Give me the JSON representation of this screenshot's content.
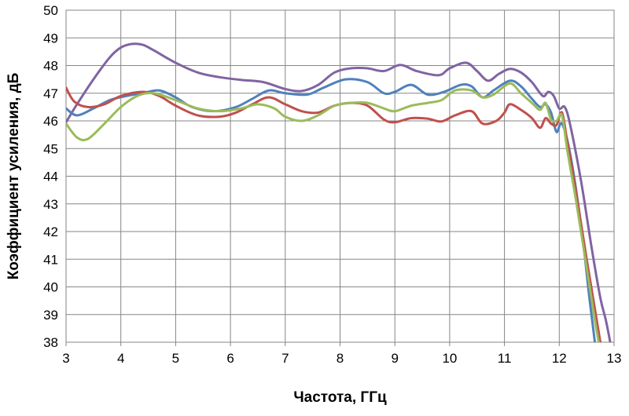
{
  "chart_data": {
    "type": "line",
    "xlabel": "Частота, ГГц",
    "ylabel": "Коэффициент усиления, дБ",
    "xlim": [
      3,
      13
    ],
    "ylim": [
      38,
      50
    ],
    "xticks": [
      "3",
      "4",
      "5",
      "6",
      "7",
      "8",
      "9",
      "10",
      "11",
      "12",
      "13"
    ],
    "yticks": [
      "38",
      "39",
      "40",
      "41",
      "42",
      "43",
      "44",
      "45",
      "46",
      "47",
      "48",
      "49",
      "50"
    ],
    "grid": true,
    "legend": "none",
    "series": [
      {
        "color": "#8064a2",
        "points": [
          [
            3.0,
            45.95
          ],
          [
            3.2,
            46.6
          ],
          [
            3.5,
            47.5
          ],
          [
            3.8,
            48.3
          ],
          [
            4.0,
            48.65
          ],
          [
            4.2,
            48.78
          ],
          [
            4.4,
            48.75
          ],
          [
            4.6,
            48.55
          ],
          [
            5.0,
            48.1
          ],
          [
            5.4,
            47.75
          ],
          [
            5.8,
            47.58
          ],
          [
            6.2,
            47.48
          ],
          [
            6.6,
            47.4
          ],
          [
            7.0,
            47.15
          ],
          [
            7.3,
            47.08
          ],
          [
            7.6,
            47.3
          ],
          [
            7.9,
            47.75
          ],
          [
            8.2,
            47.9
          ],
          [
            8.5,
            47.9
          ],
          [
            8.8,
            47.8
          ],
          [
            9.1,
            48.02
          ],
          [
            9.4,
            47.8
          ],
          [
            9.8,
            47.65
          ],
          [
            10.0,
            47.9
          ],
          [
            10.3,
            48.1
          ],
          [
            10.5,
            47.8
          ],
          [
            10.7,
            47.45
          ],
          [
            10.9,
            47.7
          ],
          [
            11.1,
            47.88
          ],
          [
            11.3,
            47.75
          ],
          [
            11.5,
            47.4
          ],
          [
            11.7,
            46.9
          ],
          [
            11.8,
            47.05
          ],
          [
            11.9,
            46.9
          ],
          [
            12.0,
            46.45
          ],
          [
            12.1,
            46.5
          ],
          [
            12.2,
            45.85
          ],
          [
            12.4,
            43.8
          ],
          [
            12.6,
            41.3
          ],
          [
            12.75,
            39.6
          ],
          [
            12.85,
            38.8
          ],
          [
            12.93,
            38.0
          ]
        ]
      },
      {
        "color": "#4f81bd",
        "points": [
          [
            3.0,
            46.45
          ],
          [
            3.2,
            46.2
          ],
          [
            3.5,
            46.45
          ],
          [
            3.8,
            46.75
          ],
          [
            4.1,
            46.9
          ],
          [
            4.4,
            47.0
          ],
          [
            4.7,
            47.1
          ],
          [
            5.0,
            46.85
          ],
          [
            5.3,
            46.5
          ],
          [
            5.7,
            46.35
          ],
          [
            6.1,
            46.5
          ],
          [
            6.4,
            46.8
          ],
          [
            6.7,
            47.1
          ],
          [
            7.0,
            47.0
          ],
          [
            7.4,
            46.95
          ],
          [
            7.7,
            47.2
          ],
          [
            8.1,
            47.5
          ],
          [
            8.5,
            47.4
          ],
          [
            8.8,
            47.0
          ],
          [
            9.0,
            47.05
          ],
          [
            9.3,
            47.3
          ],
          [
            9.6,
            46.95
          ],
          [
            9.9,
            47.05
          ],
          [
            10.2,
            47.3
          ],
          [
            10.4,
            47.25
          ],
          [
            10.6,
            46.85
          ],
          [
            10.8,
            47.1
          ],
          [
            11.1,
            47.45
          ],
          [
            11.3,
            47.25
          ],
          [
            11.5,
            46.8
          ],
          [
            11.65,
            46.5
          ],
          [
            11.75,
            46.6
          ],
          [
            11.85,
            46.3
          ],
          [
            11.95,
            45.6
          ],
          [
            12.05,
            45.9
          ],
          [
            12.2,
            44.8
          ],
          [
            12.4,
            42.2
          ],
          [
            12.55,
            39.6
          ],
          [
            12.65,
            38.0
          ]
        ]
      },
      {
        "color": "#c0504d",
        "points": [
          [
            3.0,
            47.2
          ],
          [
            3.15,
            46.7
          ],
          [
            3.4,
            46.5
          ],
          [
            3.7,
            46.6
          ],
          [
            4.0,
            46.9
          ],
          [
            4.4,
            47.05
          ],
          [
            4.7,
            46.9
          ],
          [
            5.0,
            46.55
          ],
          [
            5.4,
            46.2
          ],
          [
            5.8,
            46.15
          ],
          [
            6.1,
            46.3
          ],
          [
            6.4,
            46.6
          ],
          [
            6.7,
            46.85
          ],
          [
            7.0,
            46.6
          ],
          [
            7.3,
            46.35
          ],
          [
            7.6,
            46.3
          ],
          [
            7.9,
            46.55
          ],
          [
            8.2,
            46.65
          ],
          [
            8.5,
            46.55
          ],
          [
            8.8,
            46.05
          ],
          [
            9.0,
            45.95
          ],
          [
            9.3,
            46.1
          ],
          [
            9.6,
            46.08
          ],
          [
            9.85,
            45.98
          ],
          [
            10.1,
            46.2
          ],
          [
            10.4,
            46.35
          ],
          [
            10.6,
            45.9
          ],
          [
            10.85,
            46.0
          ],
          [
            11.0,
            46.3
          ],
          [
            11.1,
            46.6
          ],
          [
            11.3,
            46.4
          ],
          [
            11.5,
            46.1
          ],
          [
            11.65,
            45.75
          ],
          [
            11.75,
            46.1
          ],
          [
            11.85,
            45.9
          ],
          [
            11.95,
            45.85
          ],
          [
            12.05,
            46.3
          ],
          [
            12.15,
            45.2
          ],
          [
            12.3,
            43.5
          ],
          [
            12.5,
            41.0
          ],
          [
            12.65,
            39.2
          ],
          [
            12.75,
            38.0
          ]
        ]
      },
      {
        "color": "#9bbb59",
        "points": [
          [
            3.0,
            45.9
          ],
          [
            3.2,
            45.4
          ],
          [
            3.4,
            45.35
          ],
          [
            3.7,
            45.9
          ],
          [
            4.0,
            46.5
          ],
          [
            4.3,
            46.9
          ],
          [
            4.6,
            47.0
          ],
          [
            5.0,
            46.75
          ],
          [
            5.4,
            46.45
          ],
          [
            5.8,
            46.35
          ],
          [
            6.2,
            46.45
          ],
          [
            6.5,
            46.6
          ],
          [
            6.8,
            46.45
          ],
          [
            7.0,
            46.15
          ],
          [
            7.3,
            46.0
          ],
          [
            7.6,
            46.2
          ],
          [
            7.9,
            46.55
          ],
          [
            8.2,
            46.65
          ],
          [
            8.5,
            46.65
          ],
          [
            8.8,
            46.45
          ],
          [
            9.0,
            46.35
          ],
          [
            9.3,
            46.55
          ],
          [
            9.6,
            46.65
          ],
          [
            9.85,
            46.75
          ],
          [
            10.1,
            47.1
          ],
          [
            10.4,
            47.1
          ],
          [
            10.6,
            46.85
          ],
          [
            10.8,
            46.95
          ],
          [
            11.1,
            47.35
          ],
          [
            11.3,
            47.0
          ],
          [
            11.5,
            46.65
          ],
          [
            11.65,
            46.4
          ],
          [
            11.75,
            46.65
          ],
          [
            11.85,
            46.05
          ],
          [
            11.95,
            46.0
          ],
          [
            12.05,
            46.2
          ],
          [
            12.15,
            44.9
          ],
          [
            12.3,
            43.2
          ],
          [
            12.5,
            40.7
          ],
          [
            12.65,
            38.8
          ],
          [
            12.72,
            38.0
          ]
        ]
      }
    ]
  }
}
